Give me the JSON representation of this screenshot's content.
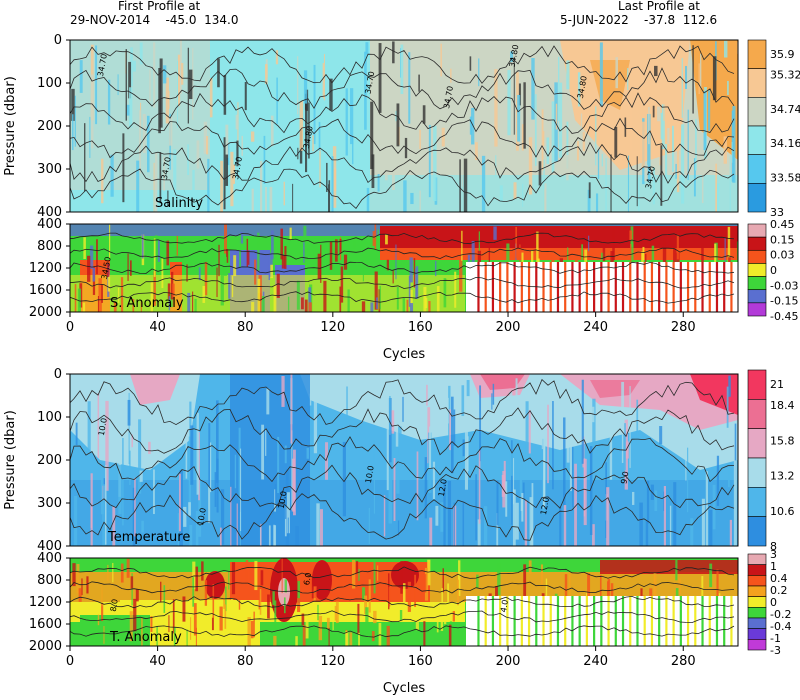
{
  "header": {
    "first_label": "First Profile at",
    "first_value": "29-NOV-2014    -45.0  134.0",
    "last_label": "Last Profile at",
    "last_value": "5-JUN-2022    -37.8  112.6"
  },
  "chart_data": [
    {
      "type": "heatmap",
      "panel": "salinity",
      "title": "Salinity",
      "xlabel": "",
      "ylabel": "Pressure (dbar)",
      "xlim": [
        0,
        305
      ],
      "ylim": [
        400,
        0
      ],
      "y_ticks": [
        "0",
        "100",
        "200",
        "300",
        "400"
      ],
      "colorbar": {
        "labels": [
          "35.9",
          "35.32",
          "34.74",
          "34.16",
          "33.58",
          "33"
        ],
        "colors": [
          "#f5a94c",
          "#f7c894",
          "#ccd6c4",
          "#8ee6ea",
          "#56c8ee",
          "#2a9be0"
        ]
      },
      "contours": [
        "34.70",
        "34.70",
        "34.70",
        "34.80",
        "34.70",
        "34.70",
        "34.80",
        "34.80",
        "34.70"
      ]
    },
    {
      "type": "heatmap",
      "panel": "salinity-anomaly",
      "title": "S. Anomaly",
      "xlabel": "Cycles",
      "ylim": [
        2000,
        400
      ],
      "y_ticks": [
        "400",
        "800",
        "1200",
        "1600",
        "2000"
      ],
      "x_ticks": [
        "0",
        "40",
        "80",
        "120",
        "160",
        "200",
        "240",
        "280"
      ],
      "colorbar": {
        "labels": [
          "0.45",
          "0.15",
          "0.03",
          "0",
          "-0.03",
          "-0.15",
          "-0.45"
        ],
        "colors": [
          "#e7a9b2",
          "#c81418",
          "#f5541c",
          "#f1ec2a",
          "#3ed63a",
          "#5a6fd0",
          "#b23ad8"
        ]
      },
      "contours": [
        "34.50"
      ]
    },
    {
      "type": "heatmap",
      "panel": "temperature",
      "title": "Temperature",
      "xlabel": "",
      "ylabel": "Pressure (dbar)",
      "xlim": [
        0,
        305
      ],
      "ylim": [
        400,
        0
      ],
      "y_ticks": [
        "0",
        "100",
        "200",
        "300",
        "400"
      ],
      "colorbar": {
        "labels": [
          "21",
          "18.4",
          "15.8",
          "13.2",
          "10.6",
          "8"
        ],
        "colors": [
          "#f2375f",
          "#ec6f93",
          "#e6a8c4",
          "#a8dcea",
          "#4fb6ea",
          "#2e8ee0"
        ]
      },
      "contours": [
        "10.0",
        "10.0",
        "10.0",
        "10.0",
        "12.0",
        "12.0",
        "9.0"
      ]
    },
    {
      "type": "heatmap",
      "panel": "temperature-anomaly",
      "title": "T. Anomaly",
      "xlabel": "Cycles",
      "ylim": [
        2000,
        400
      ],
      "y_ticks": [
        "400",
        "800",
        "1200",
        "1600",
        "2000"
      ],
      "x_ticks": [
        "0",
        "40",
        "80",
        "120",
        "160",
        "200",
        "240",
        "280"
      ],
      "colorbar": {
        "labels": [
          "3",
          "1",
          "0.4",
          "0.2",
          "0",
          "-0.2",
          "-0.4",
          "-1",
          "-3"
        ],
        "colors": [
          "#e7a9b2",
          "#c81418",
          "#f5541c",
          "#f4a21e",
          "#f1ec2a",
          "#3ed63a",
          "#5a6fd0",
          "#6a3ad8",
          "#c03ad8"
        ]
      },
      "contours": [
        "8.0",
        "6.0",
        "4.0"
      ]
    }
  ]
}
